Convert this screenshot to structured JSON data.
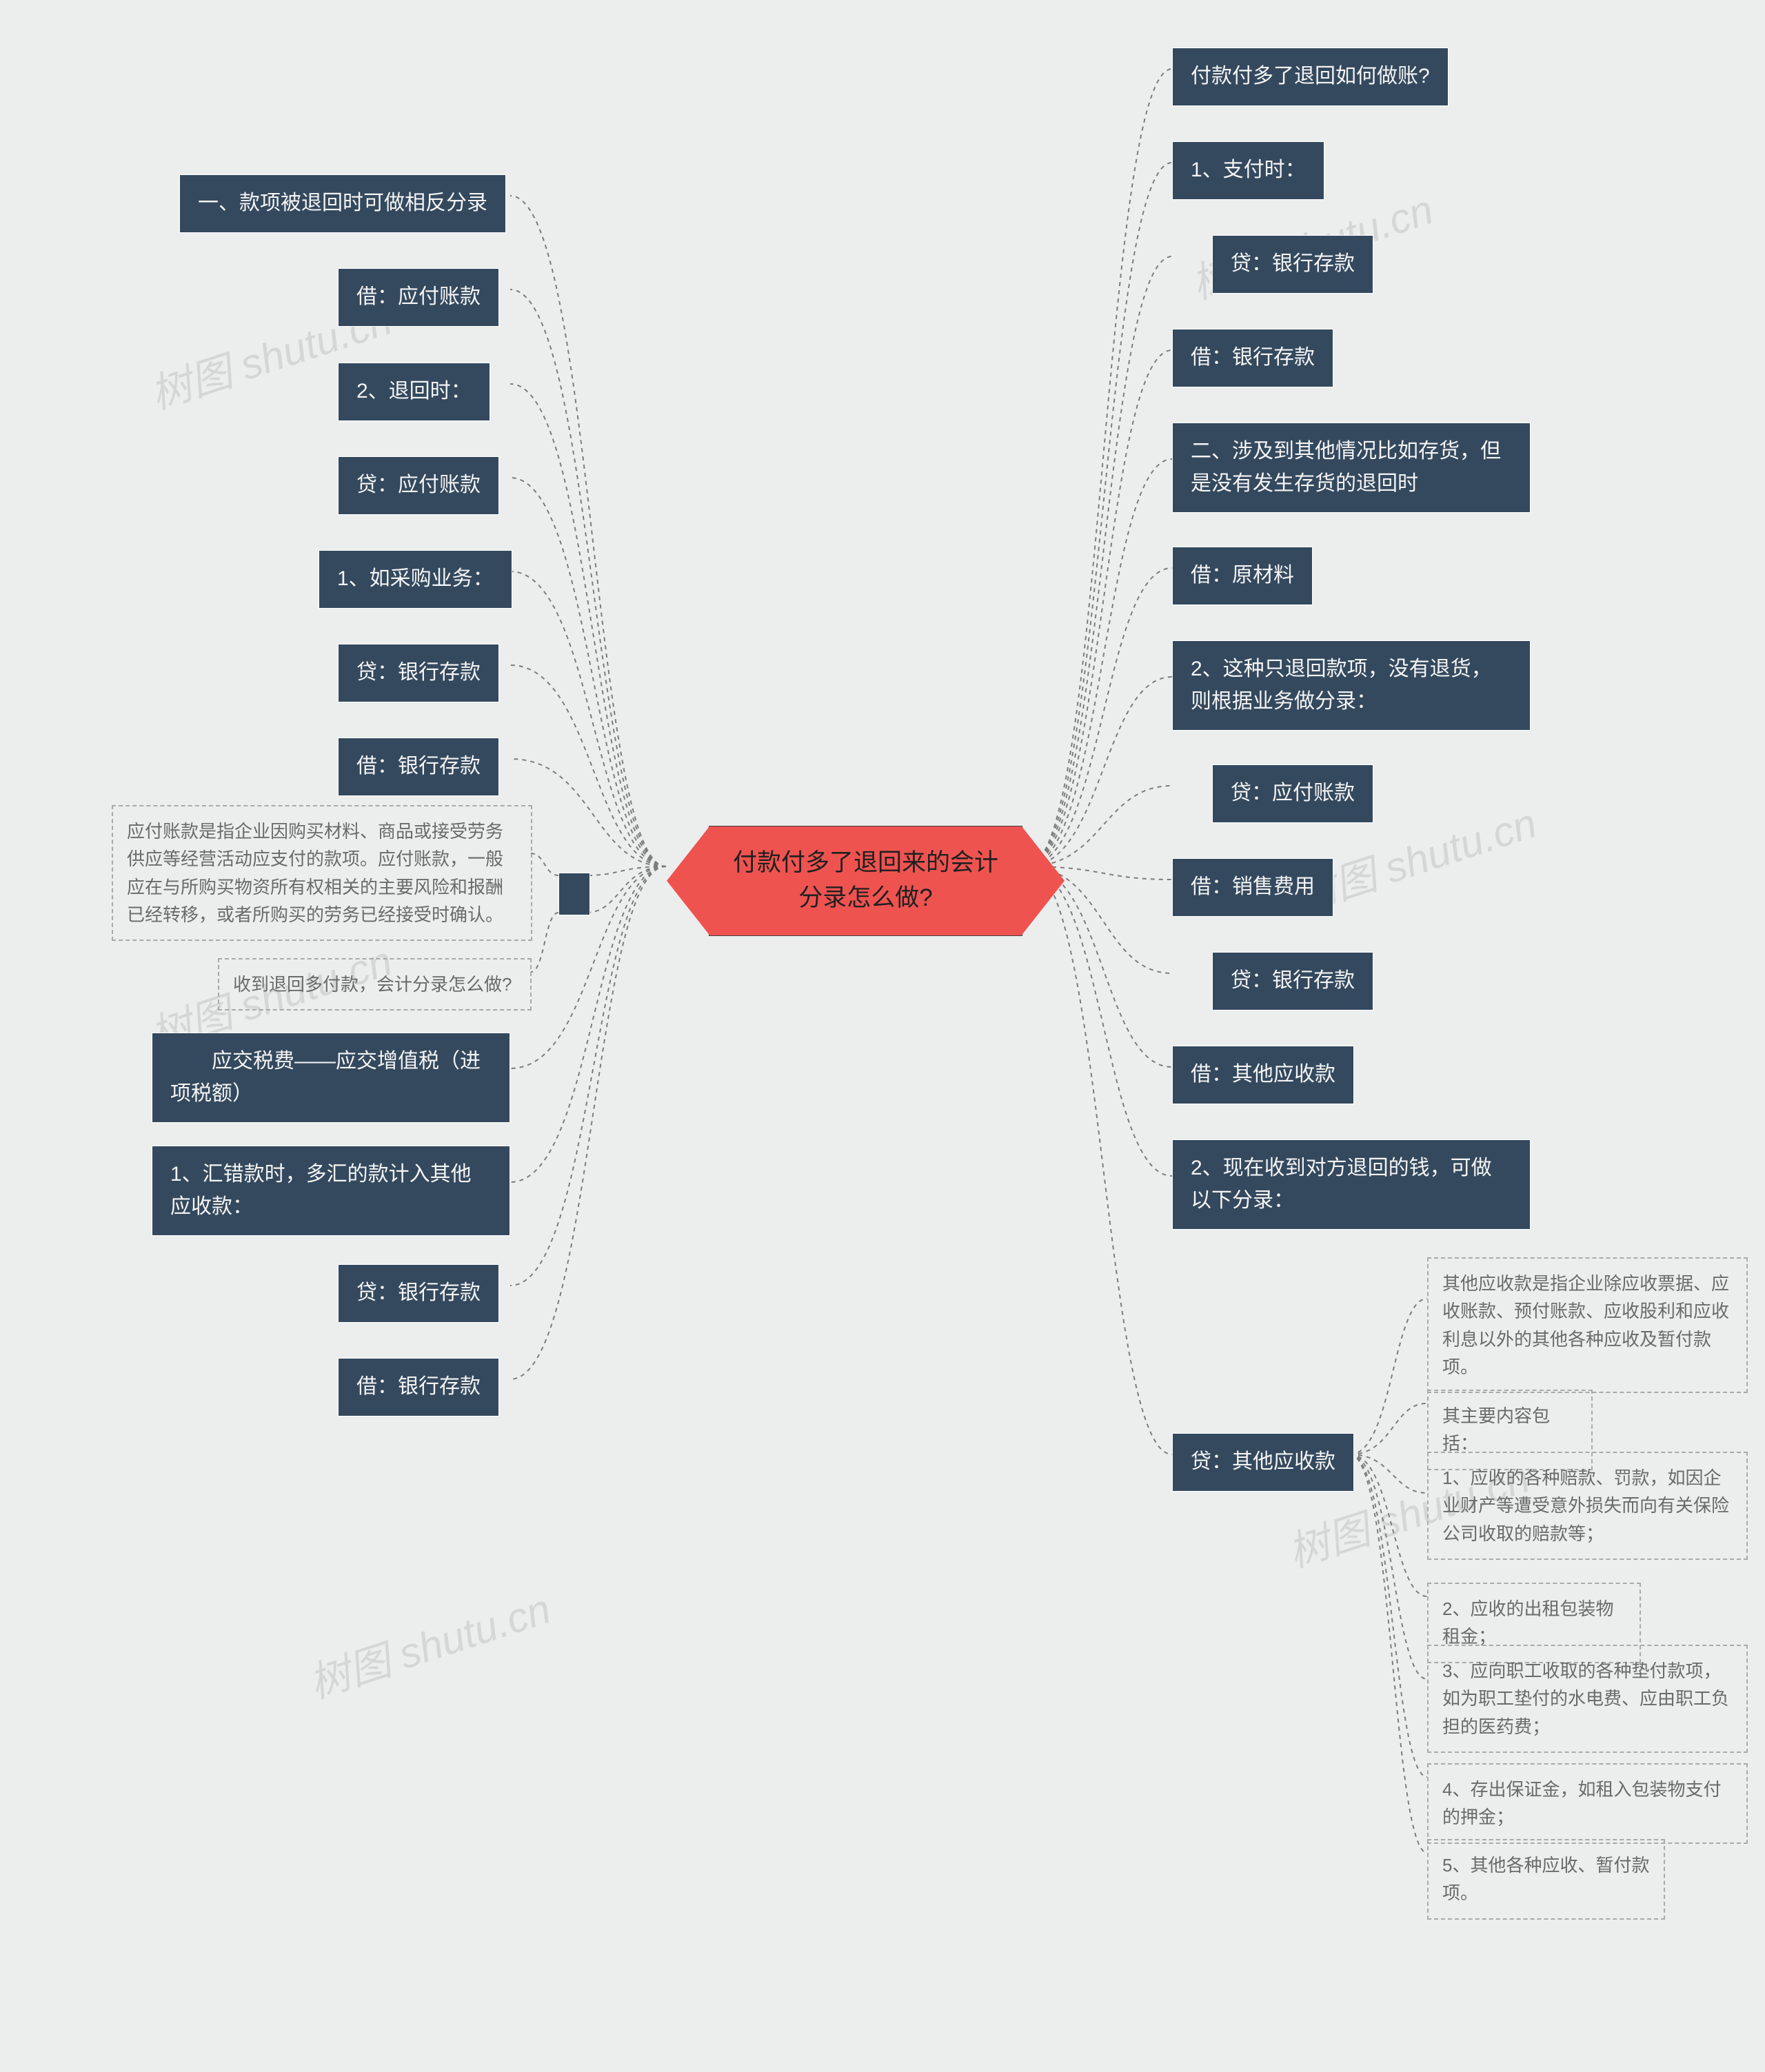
{
  "type": "mindmap",
  "background_color": "#eceeed",
  "watermark": {
    "text": "树图 shutu.cn",
    "color": "rgba(80,80,80,0.14)",
    "fontsize": 60,
    "rotation_deg": -18
  },
  "center": {
    "text": "付款付多了退回来的会计\n分录怎么做?",
    "fill": "#ef5350",
    "text_color": "#202020",
    "fontsize": 35,
    "shape": "hexagon-horizontal"
  },
  "dark_node_style": {
    "fill": "#34495e",
    "text_color": "#f4f4f4",
    "border_color": "#ffffff",
    "fontsize": 30
  },
  "dash_node_style": {
    "border_color": "#a9a9a9",
    "border_style": "dashed",
    "text_color": "#6a6a6a",
    "fill": "transparent",
    "fontsize": 26
  },
  "connector_style": {
    "color": "#7c7c7c",
    "dash": "6 6",
    "width": 2
  },
  "left": {
    "items": [
      {
        "kind": "dark",
        "text": "一、款项被退回时可做相反分录"
      },
      {
        "kind": "dark",
        "text": "借：应付账款"
      },
      {
        "kind": "dark",
        "text": "2、退回时："
      },
      {
        "kind": "dark",
        "text": "贷：应付账款"
      },
      {
        "kind": "dark",
        "text": "1、如采购业务："
      },
      {
        "kind": "dark",
        "text": "贷：银行存款"
      },
      {
        "kind": "dark",
        "text": "借：银行存款"
      },
      {
        "kind": "dash",
        "text": "应付账款是指企业因购买材料、商品或接受劳务供应等经营活动应支付的款项。应付账款，一般应在与所购买物资所有权相关的主要风险和报酬已经转移，或者所购买的劳务已经接受时确认。"
      },
      {
        "kind": "dash",
        "text": "收到退回多付款，会计分录怎么做?"
      },
      {
        "kind": "dark",
        "text": "　　应交税费——应交增值税（进项税额）"
      },
      {
        "kind": "dark",
        "text": "1、汇错款时，多汇的款计入其他应收款："
      },
      {
        "kind": "dark",
        "text": "贷：银行存款"
      },
      {
        "kind": "dark",
        "text": "借：银行存款"
      }
    ]
  },
  "right": {
    "items": [
      {
        "kind": "dark",
        "text": "付款付多了退回如何做账?"
      },
      {
        "kind": "dark",
        "text": "1、支付时："
      },
      {
        "kind": "dark",
        "text": "贷：银行存款"
      },
      {
        "kind": "dark",
        "text": "借：银行存款"
      },
      {
        "kind": "dark",
        "text": "二、涉及到其他情况比如存货，但是没有发生存货的退回时"
      },
      {
        "kind": "dark",
        "text": "借：原材料"
      },
      {
        "kind": "dark",
        "text": "2、这种只退回款项，没有退货，则根据业务做分录："
      },
      {
        "kind": "dark",
        "text": "贷：应付账款"
      },
      {
        "kind": "dark",
        "text": "借：销售费用"
      },
      {
        "kind": "dark",
        "text": "贷：银行存款"
      },
      {
        "kind": "dark",
        "text": "借：其他应收款"
      },
      {
        "kind": "dark",
        "text": "2、现在收到对方退回的钱，可做以下分录："
      },
      {
        "kind": "dark",
        "text": "贷：其他应收款",
        "children": [
          {
            "kind": "dash",
            "text": "其他应收款是指企业除应收票据、应收账款、预付账款、应收股利和应收利息以外的其他各种应收及暂付款项。"
          },
          {
            "kind": "dash",
            "text": "其主要内容包括："
          },
          {
            "kind": "dash",
            "text": "1、应收的各种赔款、罚款，如因企业财产等遭受意外损失而向有关保险公司收取的赔款等；"
          },
          {
            "kind": "dash",
            "text": "2、应收的出租包装物租金；"
          },
          {
            "kind": "dash",
            "text": "3、应向职工收取的各种垫付款项，如为职工垫付的水电费、应由职工负担的医药费；"
          },
          {
            "kind": "dash",
            "text": "4、存出保证金，如租入包装物支付的押金；"
          },
          {
            "kind": "dash",
            "text": "5、其他各种应收、暂付款项。"
          }
        ]
      }
    ]
  }
}
